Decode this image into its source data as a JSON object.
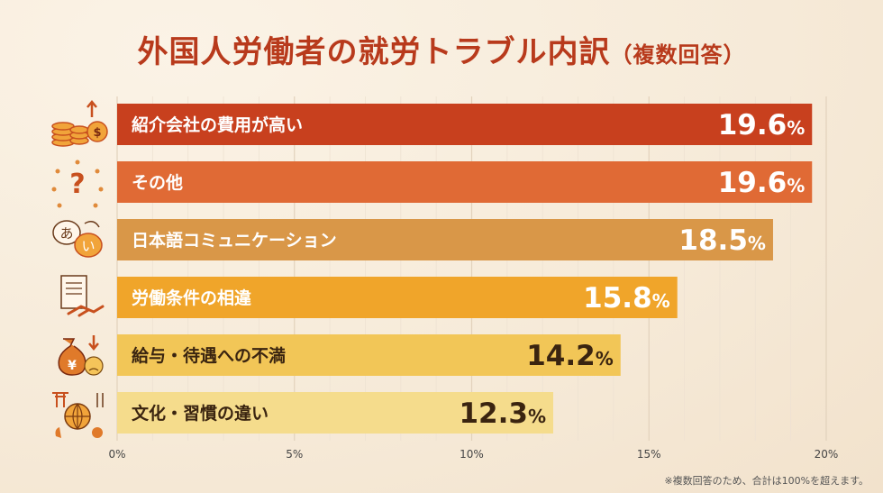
{
  "title": "外国人労働者の就労トラブル内訳",
  "subtitle": "（複数回答）",
  "footnote": "※複数回答のため、合計は100%を超えます。",
  "chart_data": {
    "type": "bar",
    "orientation": "horizontal",
    "categories": [
      "紹介会社の費用が高い",
      "その他",
      "日本語コミュニケーション",
      "労働条件の相違",
      "給与・待遇への不満",
      "文化・習慣の違い"
    ],
    "values": [
      19.6,
      19.6,
      18.5,
      15.8,
      14.2,
      12.3
    ],
    "value_labels": [
      "19.6",
      "19.6",
      "18.5",
      "15.8",
      "14.2",
      "12.3"
    ],
    "unit": "%",
    "xlim": [
      0,
      20
    ],
    "xticks": [
      "0%",
      "5%",
      "10%",
      "15%",
      "20%"
    ],
    "grid": true,
    "colors": [
      "#c8401e",
      "#e06a35",
      "#d99748",
      "#f0a52a",
      "#f2c657",
      "#f5dc8c"
    ],
    "label_colors": [
      "#ffffff",
      "#ffffff",
      "#ffffff",
      "#ffffff",
      "#3a2410",
      "#3a2410"
    ],
    "icons": [
      "coins-money-icon",
      "question-mark-icon",
      "language-speech-bubbles-icon",
      "contract-handshake-icon",
      "money-bag-sad-face-icon",
      "globe-culture-icon"
    ]
  }
}
